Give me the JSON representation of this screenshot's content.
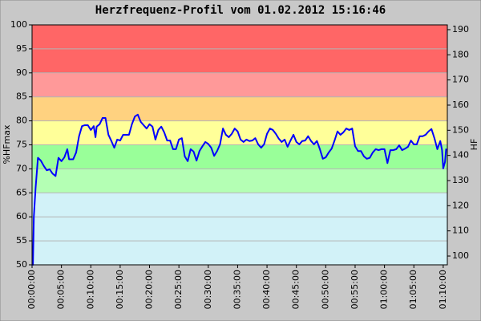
{
  "chart_data": {
    "type": "line",
    "title": "Herzfrequenz-Profil vom 01.02.2012 15:16:46",
    "ylabel": "%HFmax",
    "y2label": "HF",
    "xlim": [
      0,
      70.7
    ],
    "ylim": [
      50,
      100
    ],
    "y2lim": [
      96.5,
      191.9
    ],
    "yticks": [
      50,
      55,
      60,
      65,
      70,
      75,
      80,
      85,
      90,
      95,
      100
    ],
    "y2ticks": [
      100,
      110,
      120,
      130,
      140,
      150,
      160,
      170,
      180,
      190
    ],
    "xticks": [
      {
        "value": 0,
        "label": "00:00:00"
      },
      {
        "value": 5,
        "label": "00:05:00"
      },
      {
        "value": 10,
        "label": "00:10:00"
      },
      {
        "value": 15,
        "label": "00:15:00"
      },
      {
        "value": 20,
        "label": "00:20:00"
      },
      {
        "value": 25,
        "label": "00:25:00"
      },
      {
        "value": 30,
        "label": "00:30:00"
      },
      {
        "value": 35,
        "label": "00:35:00"
      },
      {
        "value": 40,
        "label": "00:40:00"
      },
      {
        "value": 45,
        "label": "00:45:00"
      },
      {
        "value": 50,
        "label": "00:50:00"
      },
      {
        "value": 55,
        "label": "00:55:00"
      },
      {
        "value": 60,
        "label": "01:00:00"
      },
      {
        "value": 65,
        "label": "01:05:00"
      },
      {
        "value": 70,
        "label": "01:10:00"
      }
    ],
    "grid": true,
    "zones": [
      {
        "from": 50,
        "to": 65,
        "color": "#d2f2f8"
      },
      {
        "from": 65,
        "to": 70,
        "color": "#b4ffb4"
      },
      {
        "from": 70,
        "to": 75,
        "color": "#99ff99"
      },
      {
        "from": 75,
        "to": 80,
        "color": "#ffff99"
      },
      {
        "from": 80,
        "to": 85,
        "color": "#ffd280"
      },
      {
        "from": 85,
        "to": 90,
        "color": "#ff9999"
      },
      {
        "from": 90,
        "to": 100,
        "color": "#ff6666"
      }
    ],
    "x": [
      0,
      0.15,
      0.3,
      0.6,
      1,
      1.5,
      2,
      2.5,
      3,
      3.5,
      4,
      4.5,
      5,
      5.5,
      6,
      6.3,
      7,
      7.5,
      8,
      8.5,
      9,
      9.5,
      10,
      10.5,
      10.8,
      11,
      11.5,
      12,
      12.5,
      13,
      13.5,
      14,
      14.5,
      15,
      15.5,
      16,
      16.5,
      17,
      17.5,
      18,
      18.5,
      19,
      19.5,
      20,
      20.5,
      21,
      21.5,
      22,
      22.5,
      23,
      23.5,
      24,
      24.5,
      25,
      25.5,
      26,
      26.5,
      27,
      27.5,
      28,
      28.5,
      29,
      29.5,
      30,
      30.5,
      31,
      31.5,
      32,
      32.5,
      33,
      33.5,
      34,
      34.5,
      35,
      35.5,
      36,
      36.5,
      37,
      37.5,
      38,
      38.5,
      39,
      39.5,
      40,
      40.5,
      41,
      41.5,
      42,
      42.5,
      43,
      43.5,
      44,
      44.5,
      45,
      45.5,
      46,
      46.5,
      47,
      47.5,
      48,
      48.5,
      49,
      49.5,
      50,
      50.5,
      51,
      51.5,
      52,
      52.5,
      53,
      53.5,
      54,
      54.5,
      55,
      55.5,
      56,
      56.5,
      57,
      57.5,
      58,
      58.5,
      59,
      59.5,
      60,
      60.5,
      61,
      61.5,
      62,
      62.5,
      63,
      63.5,
      64,
      64.5,
      65,
      65.5,
      66,
      66.5,
      67,
      67.5,
      68,
      68.5,
      69,
      69.5,
      69.8,
      70,
      70.3,
      70.5
    ],
    "series": [
      {
        "name": "%HFmax",
        "color": "#0000ff",
        "values": [
          50,
          50,
          60,
          66,
          72.3,
          71.7,
          70.6,
          69.7,
          69.9,
          69,
          68.5,
          72.3,
          71.6,
          72.4,
          74.1,
          72,
          72,
          73.4,
          76.8,
          78.9,
          79.1,
          79.1,
          78.1,
          78.9,
          76.6,
          78.8,
          79.3,
          80.6,
          80.6,
          77.1,
          75.8,
          74.4,
          76.1,
          75.9,
          77.1,
          77.1,
          77.1,
          79.3,
          80.9,
          81.3,
          79.8,
          79.1,
          78.4,
          79.3,
          78.8,
          76.1,
          78.1,
          78.8,
          77.6,
          75.9,
          75.9,
          74.1,
          74.1,
          76.1,
          76.4,
          72.6,
          71.6,
          74.1,
          73.6,
          71.7,
          73.7,
          74.7,
          75.6,
          75.2,
          74.4,
          72.7,
          73.7,
          75.1,
          78.4,
          77.1,
          76.6,
          77.3,
          78.4,
          77.8,
          76.1,
          75.6,
          76.1,
          75.8,
          75.9,
          76.4,
          75.1,
          74.4,
          75.1,
          77.3,
          78.4,
          78.1,
          77.3,
          76.3,
          75.6,
          76.1,
          74.6,
          75.9,
          77.1,
          75.6,
          75.1,
          75.8,
          75.9,
          76.8,
          75.8,
          75.1,
          75.8,
          74.1,
          72.1,
          72.4,
          73.4,
          74.2,
          75.9,
          77.8,
          77.1,
          77.6,
          78.4,
          78.1,
          78.4,
          74.7,
          73.7,
          73.7,
          72.6,
          72.1,
          72.3,
          73.4,
          74.1,
          73.9,
          74.1,
          74.1,
          71.2,
          73.9,
          73.9,
          74.1,
          74.9,
          73.9,
          74.2,
          74.6,
          75.9,
          75.1,
          75.1,
          76.8,
          76.8,
          77.1,
          77.8,
          78.3,
          76.4,
          74.1,
          75.8,
          73.9,
          70.1,
          71.4,
          74.2
        ]
      }
    ]
  }
}
